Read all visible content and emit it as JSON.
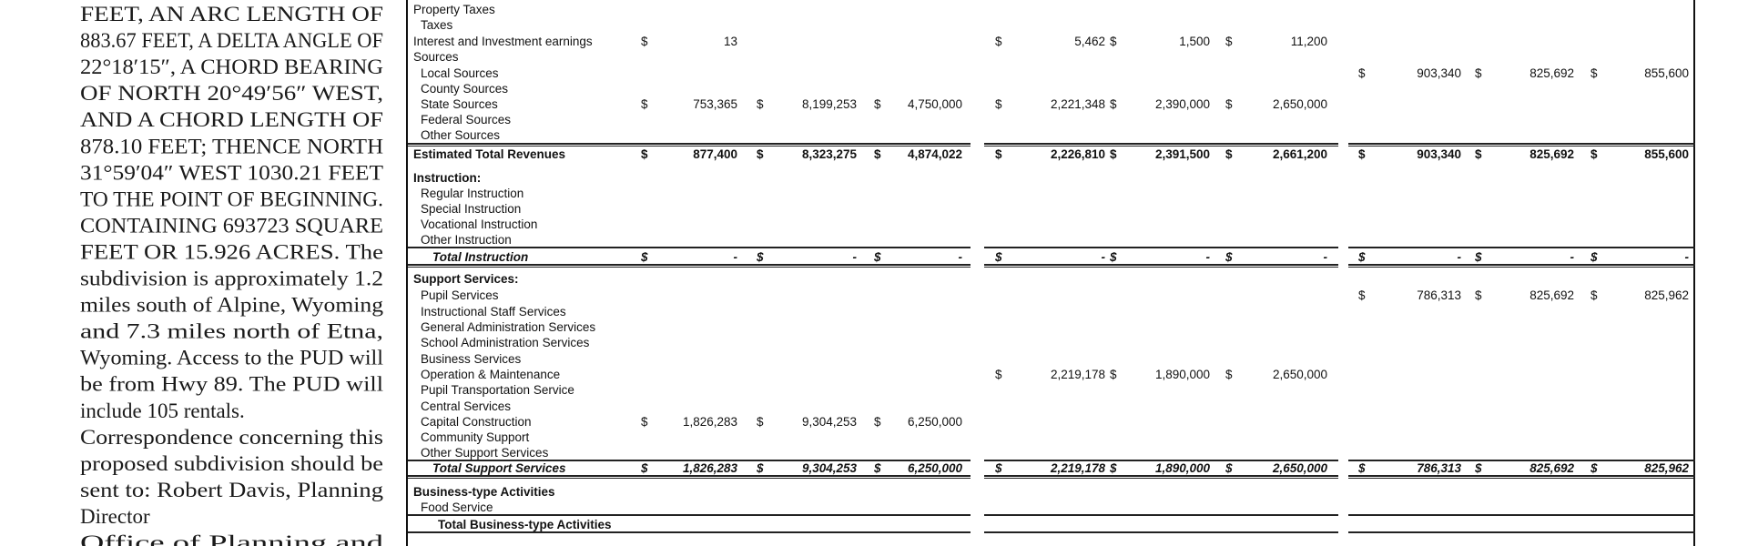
{
  "notice": {
    "lines": [
      {
        "text": "FEET, AN ARC LENGTH OF",
        "justify": true
      },
      {
        "text": "883.67 FEET, A DELTA ANGLE OF",
        "justify": true
      },
      {
        "text": "22°18′15″, A CHORD BEARING",
        "justify": true
      },
      {
        "text": "OF NORTH 20°49′56″ WEST,",
        "justify": true
      },
      {
        "text": "AND A CHORD LENGTH OF",
        "justify": true
      },
      {
        "text": "878.10 FEET; THENCE NORTH",
        "justify": true
      },
      {
        "text": "31°59′04″ WEST 1030.21 FEET",
        "justify": true
      },
      {
        "text": "TO THE POINT OF BEGINNING.",
        "justify": true
      },
      {
        "text": "CONTAINING 693723 SQUARE",
        "justify": true
      },
      {
        "text": "FEET OR 15.926 ACRES. The",
        "justify": true
      },
      {
        "text": "subdivision is approximately 1.2",
        "justify": true
      },
      {
        "text": "miles south of Alpine, Wyoming",
        "justify": true
      },
      {
        "text": "and 7.3 miles north of Etna,",
        "justify": true
      },
      {
        "text": "Wyoming. Access to the PUD will",
        "justify": true
      },
      {
        "text": "be from Hwy 89. The PUD will",
        "justify": true
      },
      {
        "text": "include 105 rentals.",
        "justify": false
      },
      {
        "text": "Correspondence concerning this",
        "justify": true
      },
      {
        "text": "proposed subdivision should be",
        "justify": true
      },
      {
        "text": "sent to: Robert Davis, Planning",
        "justify": true
      },
      {
        "text": "Director",
        "justify": false
      },
      {
        "text": "Office of Planning and",
        "justify": true
      }
    ]
  },
  "budget": {
    "currency_symbol": "$",
    "rows": [
      {
        "label": "Property Taxes",
        "indent": 0,
        "style": "normal",
        "values": []
      },
      {
        "label": "Taxes",
        "indent": 1,
        "style": "normal",
        "values": []
      },
      {
        "label": "Interest and Investment earnings",
        "indent": 0,
        "style": "normal",
        "values": [
          "13",
          null,
          null,
          "5,462",
          "1,500",
          "11,200",
          null,
          null,
          null
        ]
      },
      {
        "label": "Sources",
        "indent": 0,
        "style": "normal",
        "values": []
      },
      {
        "label": "Local Sources",
        "indent": 1,
        "style": "normal",
        "values": [
          null,
          null,
          null,
          null,
          null,
          null,
          "903,340",
          "825,692",
          "855,600"
        ]
      },
      {
        "label": "County Sources",
        "indent": 1,
        "style": "normal",
        "values": []
      },
      {
        "label": "State Sources",
        "indent": 1,
        "style": "normal",
        "values": [
          "753,365",
          "8,199,253",
          "4,750,000",
          "2,221,348",
          "2,390,000",
          "2,650,000",
          null,
          null,
          null
        ]
      },
      {
        "label": "Federal Sources",
        "indent": 1,
        "style": "normal",
        "values": []
      },
      {
        "label": "Other Sources",
        "indent": 1,
        "style": "normal",
        "values": []
      },
      {
        "label": "Estimated Total Revenues",
        "indent": 0,
        "style": "bold",
        "values": [
          "877,400",
          "8,323,275",
          "4,874,022",
          "2,226,810",
          "2,391,500",
          "2,661,200",
          "903,340",
          "825,692",
          "855,600"
        ]
      },
      {
        "label": "Instruction:",
        "indent": 0,
        "style": "bold",
        "values": []
      },
      {
        "label": "Regular Instruction",
        "indent": 1,
        "style": "normal",
        "values": []
      },
      {
        "label": "Special Instruction",
        "indent": 1,
        "style": "normal",
        "values": []
      },
      {
        "label": "Vocational Instruction",
        "indent": 1,
        "style": "normal",
        "values": []
      },
      {
        "label": "Other Instruction",
        "indent": 1,
        "style": "normal",
        "values": []
      },
      {
        "label": "Total Instruction",
        "indent": 2,
        "style": "bold-italic",
        "values": [
          "-",
          "-",
          "-",
          "-",
          "-",
          "-",
          "-",
          "-",
          "-"
        ]
      },
      {
        "label": "Support Services:",
        "indent": 0,
        "style": "bold",
        "values": []
      },
      {
        "label": "Pupil Services",
        "indent": 1,
        "style": "normal",
        "values": [
          null,
          null,
          null,
          null,
          null,
          null,
          "786,313",
          "825,692",
          "825,962"
        ]
      },
      {
        "label": "Instructional Staff Services",
        "indent": 1,
        "style": "normal",
        "values": []
      },
      {
        "label": "General Administration Services",
        "indent": 1,
        "style": "normal",
        "values": []
      },
      {
        "label": "School Administration Services",
        "indent": 1,
        "style": "normal",
        "values": []
      },
      {
        "label": "Business Services",
        "indent": 1,
        "style": "normal",
        "values": []
      },
      {
        "label": "Operation & Maintenance",
        "indent": 1,
        "style": "normal",
        "values": [
          null,
          null,
          null,
          "2,219,178",
          "1,890,000",
          "2,650,000",
          null,
          null,
          null
        ]
      },
      {
        "label": "Pupil Transportation Service",
        "indent": 1,
        "style": "normal",
        "values": []
      },
      {
        "label": "Central Services",
        "indent": 1,
        "style": "normal",
        "values": []
      },
      {
        "label": "Capital Construction",
        "indent": 1,
        "style": "normal",
        "values": [
          "1,826,283",
          "9,304,253",
          "6,250,000",
          null,
          null,
          null,
          null,
          null,
          null
        ]
      },
      {
        "label": "Community Support",
        "indent": 1,
        "style": "normal",
        "values": []
      },
      {
        "label": "Other Support Services",
        "indent": 1,
        "style": "normal",
        "values": []
      },
      {
        "label": "Total Support Services",
        "indent": 2,
        "style": "bold-italic",
        "values": [
          "1,826,283",
          "9,304,253",
          "6,250,000",
          "2,219,178",
          "1,890,000",
          "2,650,000",
          "786,313",
          "825,692",
          "825,962"
        ]
      },
      {
        "label": "Business-type Activities",
        "indent": 0,
        "style": "bold",
        "values": []
      },
      {
        "label": "Food Service",
        "indent": 1,
        "style": "normal",
        "values": []
      },
      {
        "label": "Total Business-type Activities",
        "indent": 3,
        "style": "bold",
        "values": []
      }
    ]
  }
}
